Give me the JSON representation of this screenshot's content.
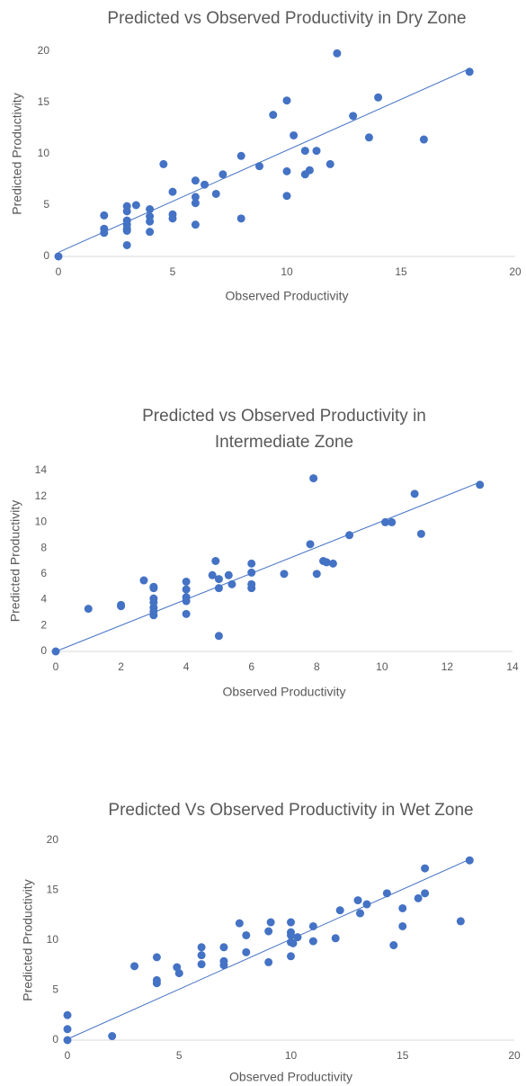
{
  "chart_data": [
    {
      "type": "scatter",
      "title": "Predicted vs Observed Productivity in Dry Zone",
      "x_label": "Observed Productivity",
      "y_label": "Predicted Productivity",
      "color": "#4472c4",
      "xlim": [
        0,
        20
      ],
      "xticks": [
        0,
        5,
        10,
        15,
        20
      ],
      "ylim": [
        0,
        20
      ],
      "yticks": [
        0,
        5,
        10,
        15,
        20
      ],
      "grid": false,
      "x": [
        0,
        2,
        2,
        2,
        3,
        3,
        3,
        3,
        3,
        3,
        3,
        3.4,
        4,
        4,
        4,
        4,
        4.6,
        5,
        5,
        5,
        6,
        6,
        6,
        6,
        6.4,
        6.9,
        7.2,
        8,
        8,
        8.8,
        9.4,
        10,
        10,
        10,
        10.3,
        10.8,
        10.8,
        11,
        11.3,
        11.9,
        12.2,
        12.9,
        13.6,
        14,
        16,
        18
      ],
      "values": [
        0,
        4.0,
        2.7,
        2.3,
        4.9,
        4.4,
        3.5,
        3.1,
        2.7,
        2.5,
        1.1,
        5.0,
        4.6,
        3.9,
        3.4,
        2.4,
        9.0,
        6.3,
        4.1,
        3.7,
        7.4,
        5.8,
        5.2,
        3.1,
        7.0,
        6.1,
        8.0,
        9.8,
        3.7,
        8.8,
        13.8,
        15.2,
        8.3,
        5.9,
        11.8,
        10.3,
        8.0,
        8.4,
        10.3,
        9.0,
        19.8,
        13.7,
        11.6,
        15.5,
        11.4,
        18.0
      ],
      "trendline": {
        "x": [
          0,
          18
        ],
        "y": [
          0.4,
          18.3
        ]
      }
    },
    {
      "type": "scatter",
      "title": "Predicted vs Observed Productivity in Intermediate Zone",
      "x_label": "Observed Productivity",
      "y_label": "Predicted Productivity",
      "color": "#4472c4",
      "xlim": [
        0,
        14
      ],
      "xticks": [
        0,
        2,
        4,
        6,
        8,
        10,
        12,
        14
      ],
      "ylim": [
        0,
        14
      ],
      "yticks": [
        0,
        2,
        4,
        6,
        8,
        10,
        12,
        14
      ],
      "grid": false,
      "x": [
        0,
        1,
        2,
        2,
        2.7,
        3,
        3,
        3,
        3,
        3,
        3,
        3,
        4,
        4,
        4,
        4,
        4,
        4.8,
        4.9,
        5,
        5,
        5,
        5.3,
        5.4,
        6,
        6,
        6,
        6,
        7,
        7.8,
        7.9,
        8,
        8.2,
        8.3,
        8.5,
        9,
        10.1,
        10.3,
        11,
        11.2,
        13
      ],
      "values": [
        0,
        3.3,
        3.6,
        3.5,
        5.5,
        5.0,
        4.9,
        4.1,
        3.8,
        3.4,
        3.1,
        2.8,
        5.4,
        4.8,
        4.2,
        3.9,
        2.9,
        5.9,
        7.0,
        5.6,
        4.9,
        1.2,
        5.9,
        5.2,
        6.8,
        6.1,
        5.2,
        4.9,
        6.0,
        8.3,
        13.4,
        6.0,
        7.0,
        6.9,
        6.8,
        9.0,
        10.0,
        10.0,
        12.2,
        9.1,
        12.9
      ],
      "trendline": {
        "x": [
          0,
          13
        ],
        "y": [
          0,
          13.1
        ]
      }
    },
    {
      "type": "scatter",
      "title": "Predicted Vs Observed Productivity in Wet Zone",
      "x_label": "Observed Productivity",
      "y_label": "Predicted Productivity",
      "color": "#4472c4",
      "xlim": [
        0,
        20
      ],
      "xticks": [
        0,
        5,
        10,
        15,
        20
      ],
      "ylim": [
        0,
        20
      ],
      "yticks": [
        0,
        5,
        10,
        15,
        20
      ],
      "grid": false,
      "x": [
        0,
        0,
        0,
        2,
        3,
        4,
        4,
        4,
        4.9,
        5,
        6,
        6,
        6,
        7,
        7,
        7,
        7.7,
        8,
        8,
        9,
        9,
        9.1,
        10,
        10,
        10,
        10,
        10,
        10.1,
        10.3,
        11,
        11,
        12,
        12.2,
        13,
        13.1,
        13.4,
        14.3,
        14.6,
        15,
        15,
        15.7,
        16,
        16,
        17.6,
        18
      ],
      "values": [
        0,
        1.1,
        2.5,
        0.4,
        7.4,
        8.3,
        6.0,
        5.7,
        7.3,
        6.7,
        9.3,
        8.5,
        7.6,
        9.3,
        7.9,
        7.5,
        11.7,
        10.5,
        8.8,
        10.9,
        7.8,
        11.8,
        11.8,
        10.8,
        10.5,
        9.8,
        8.4,
        9.7,
        10.3,
        11.4,
        9.9,
        10.2,
        13.0,
        14.0,
        12.7,
        13.6,
        14.7,
        9.5,
        13.2,
        11.4,
        14.2,
        14.7,
        17.2,
        11.9,
        18.0
      ],
      "trendline": {
        "x": [
          0,
          18
        ],
        "y": [
          0.1,
          18.1
        ]
      }
    }
  ]
}
